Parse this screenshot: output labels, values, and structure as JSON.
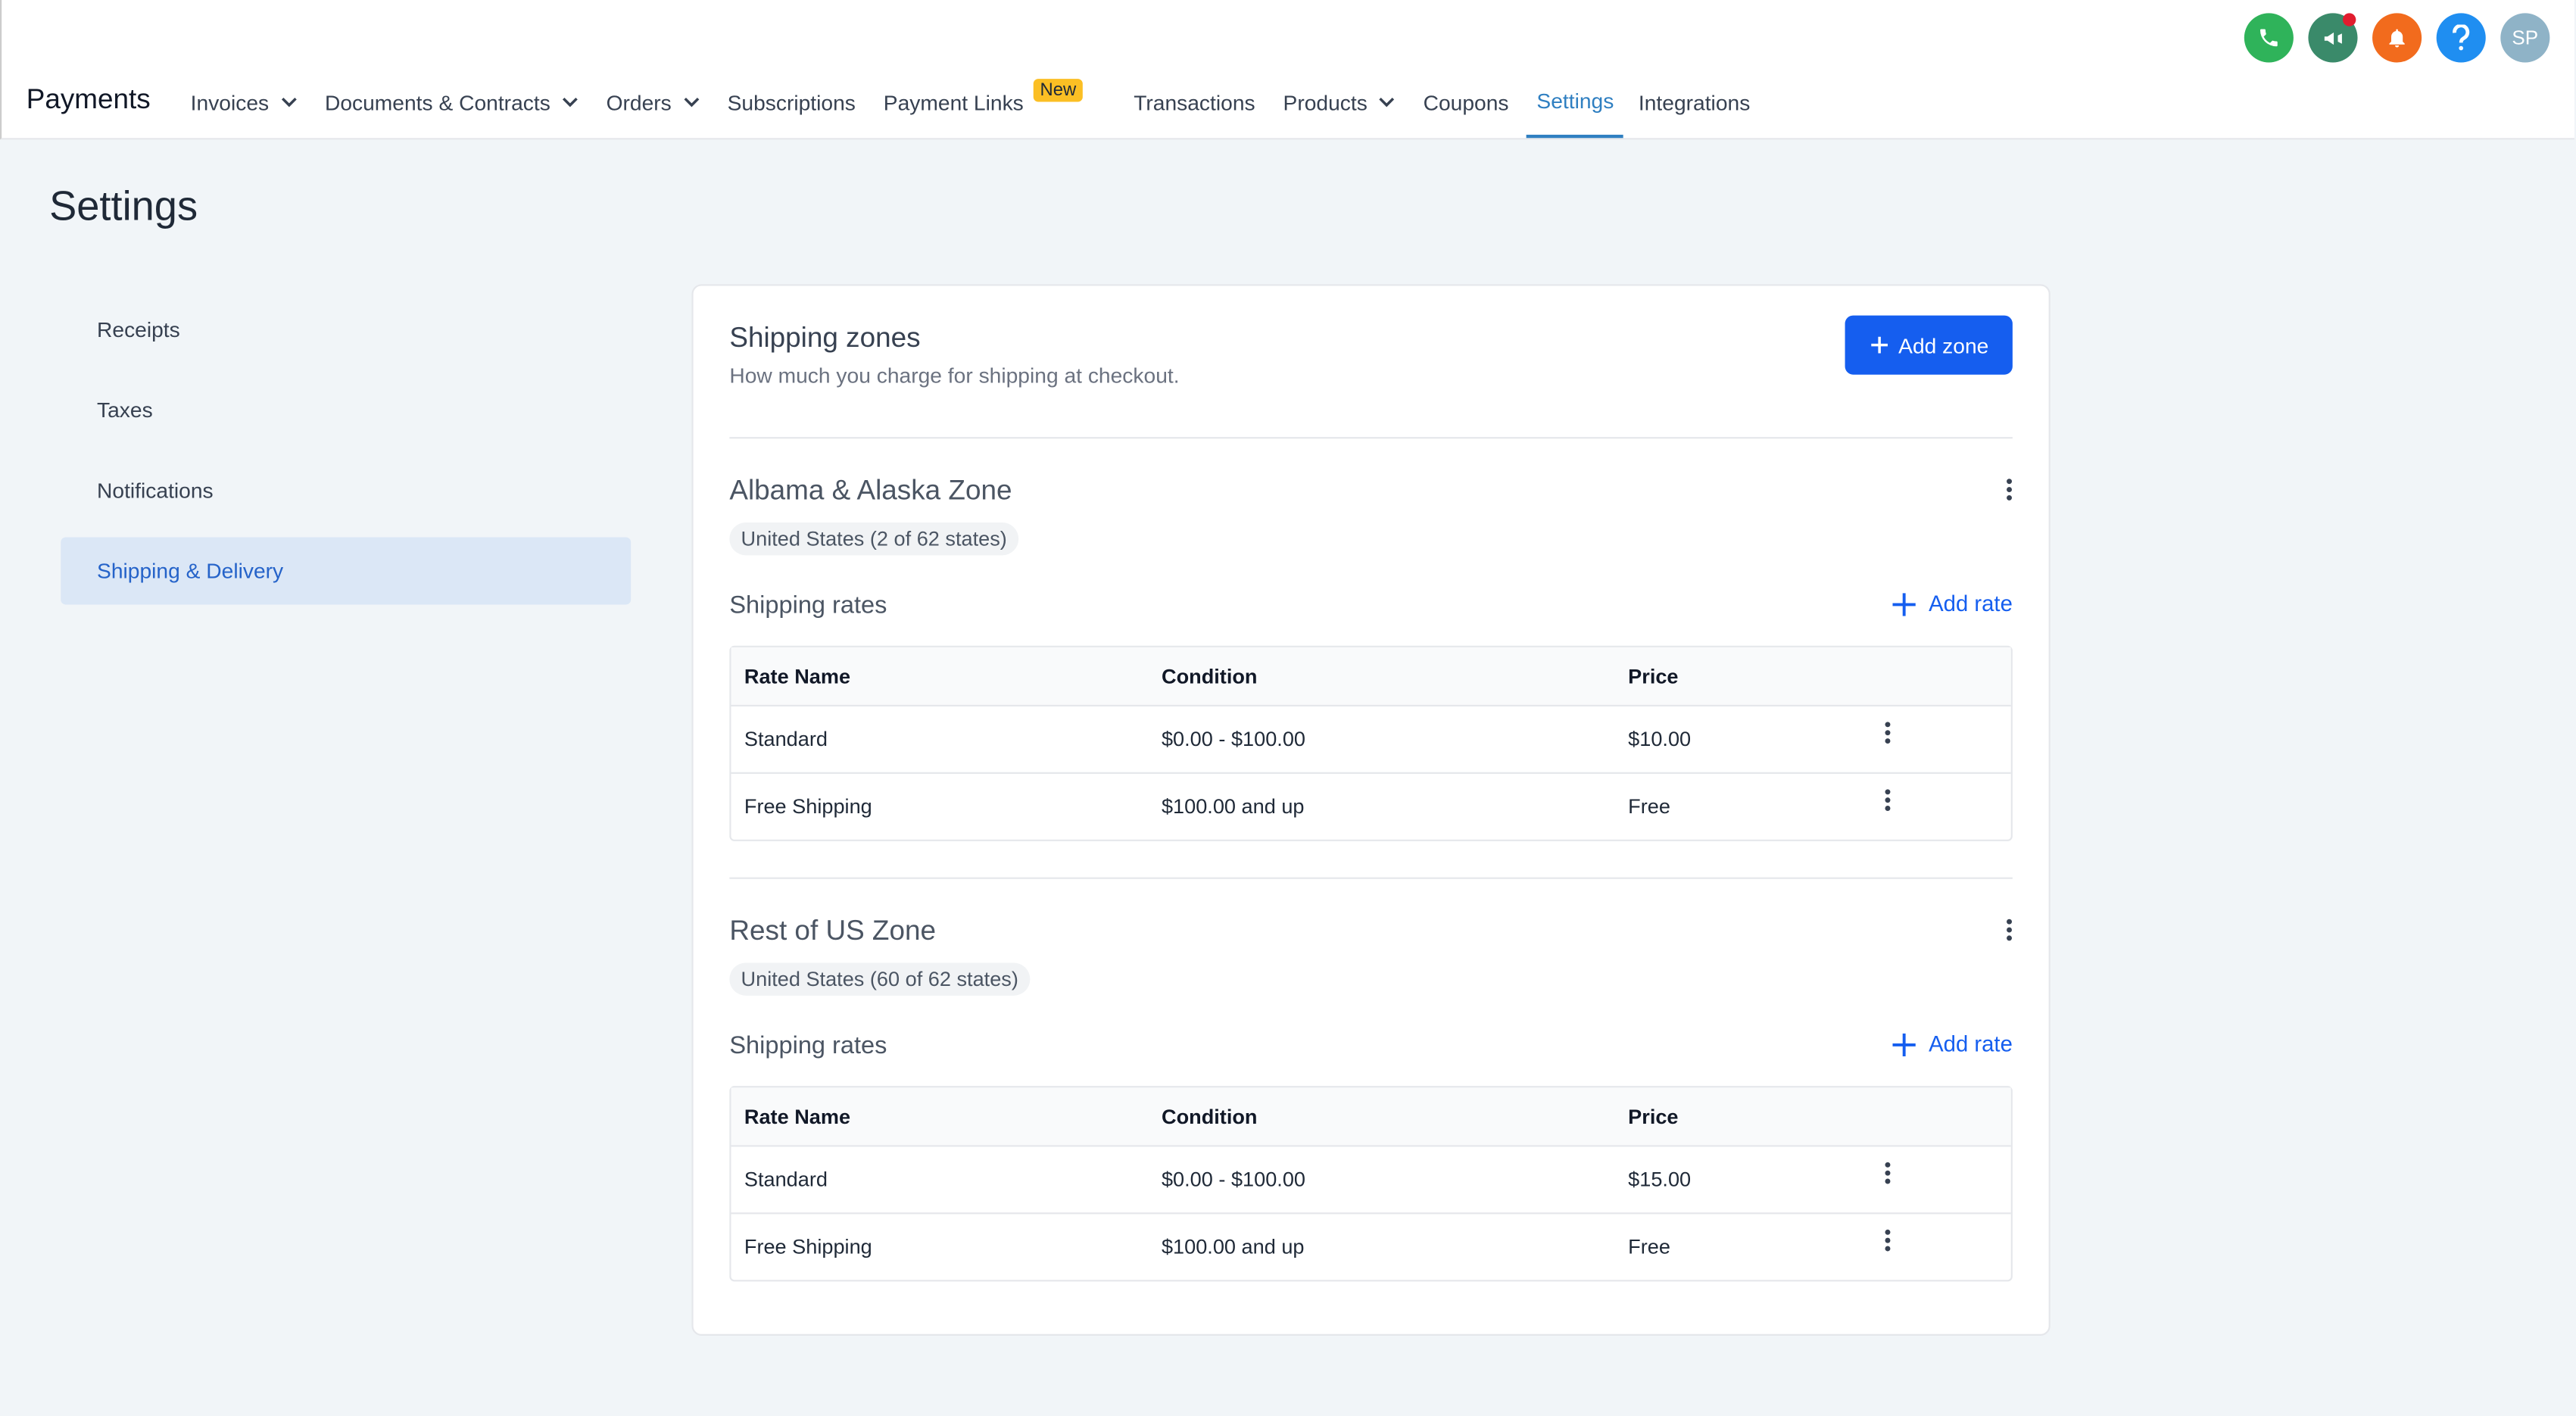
{
  "header": {
    "app_title": "Payments",
    "nav": [
      {
        "label": "Invoices",
        "dropdown": true
      },
      {
        "label": "Documents & Contracts",
        "dropdown": true
      },
      {
        "label": "Orders",
        "dropdown": true
      },
      {
        "label": "Subscriptions"
      },
      {
        "label": "Payment Links",
        "badge": "New"
      },
      {
        "label": "Transactions"
      },
      {
        "label": "Products",
        "dropdown": true
      },
      {
        "label": "Coupons"
      },
      {
        "label": "Settings",
        "active": true
      },
      {
        "label": "Integrations"
      }
    ],
    "avatar": "SP"
  },
  "page": {
    "title": "Settings"
  },
  "sidebar": {
    "items": [
      {
        "label": "Receipts"
      },
      {
        "label": "Taxes"
      },
      {
        "label": "Notifications"
      },
      {
        "label": "Shipping & Delivery",
        "active": true
      }
    ]
  },
  "shipping": {
    "title": "Shipping zones",
    "subtitle": "How much you charge for shipping at checkout.",
    "add_button": "Add zone",
    "zones": [
      {
        "name": "Albama & Alaska Zone",
        "region": "United States (2 of 62 states)",
        "rates_title": "Shipping rates",
        "add_rate": "Add rate",
        "columns": [
          "Rate Name",
          "Condition",
          "Price"
        ],
        "rows": [
          [
            "Standard",
            "$0.00 - $100.00",
            "$10.00"
          ],
          [
            "Free Shipping",
            "$100.00 and up",
            "Free"
          ]
        ]
      },
      {
        "name": "Rest of US Zone",
        "region": "United States (60 of 62 states)",
        "rates_title": "Shipping rates",
        "add_rate": "Add rate",
        "columns": [
          "Rate Name",
          "Condition",
          "Price"
        ],
        "rows": [
          [
            "Standard",
            "$0.00 - $100.00",
            "$15.00"
          ],
          [
            "Free Shipping",
            "$100.00 and up",
            "Free"
          ]
        ]
      }
    ]
  }
}
